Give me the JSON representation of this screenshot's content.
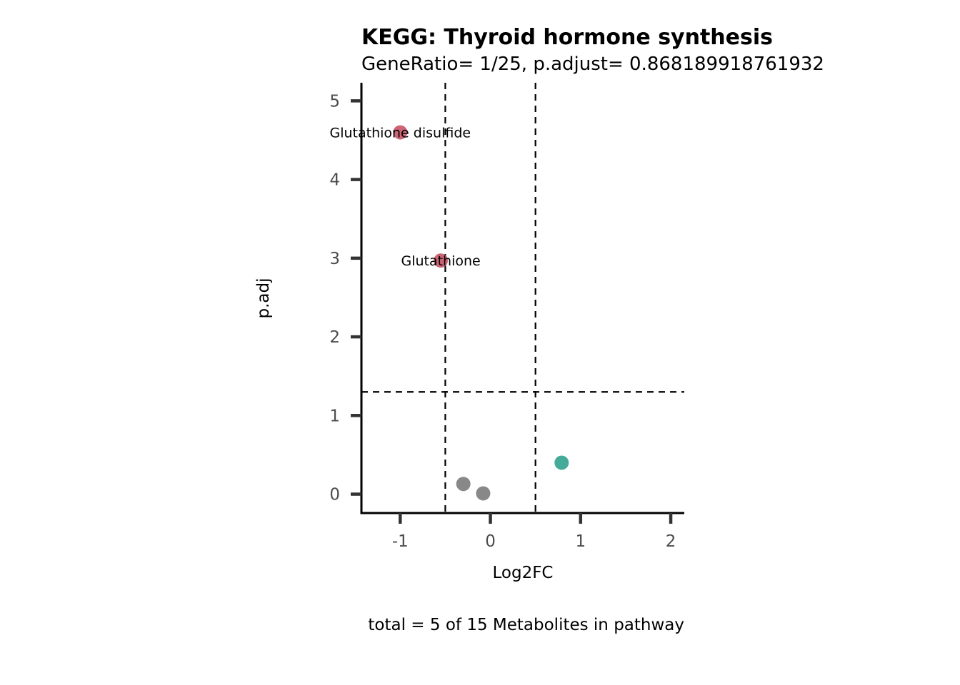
{
  "chart_data": {
    "type": "scatter",
    "title": "KEGG: Thyroid hormone synthesis",
    "subtitle": "GeneRatio= 1/25, p.adjust= 0.868189918761932",
    "xlabel": "Log2FC",
    "ylabel": "p.adj",
    "caption": "total = 5 of 15 Metabolites in pathway",
    "xlim": [
      -1.43,
      2.15
    ],
    "ylim": [
      -0.24,
      5.23
    ],
    "x_ticks": [
      -1,
      0,
      1,
      2
    ],
    "x_tick_labels": [
      "-1",
      "0",
      "1",
      "2"
    ],
    "y_ticks": [
      0,
      1,
      2,
      3,
      4,
      5
    ],
    "y_tick_labels": [
      "0",
      "1",
      "2",
      "3",
      "4",
      "5"
    ],
    "thresholds": {
      "vertical": [
        -0.5,
        0.5
      ],
      "horizontal": [
        1.3
      ]
    },
    "grid": false,
    "legend": "none",
    "colors": {
      "down": "#cc6677",
      "up": "#44aa99",
      "ns": "#888888"
    },
    "points": [
      {
        "x": -1.0,
        "y": 4.6,
        "group": "down",
        "label": "Glutathione disulfide"
      },
      {
        "x": -0.55,
        "y": 2.97,
        "group": "down",
        "label": "Glutathione"
      },
      {
        "x": -0.3,
        "y": 0.13,
        "group": "ns",
        "label": ""
      },
      {
        "x": -0.08,
        "y": 0.01,
        "group": "ns",
        "label": ""
      },
      {
        "x": 0.79,
        "y": 0.4,
        "group": "up",
        "label": ""
      }
    ]
  }
}
